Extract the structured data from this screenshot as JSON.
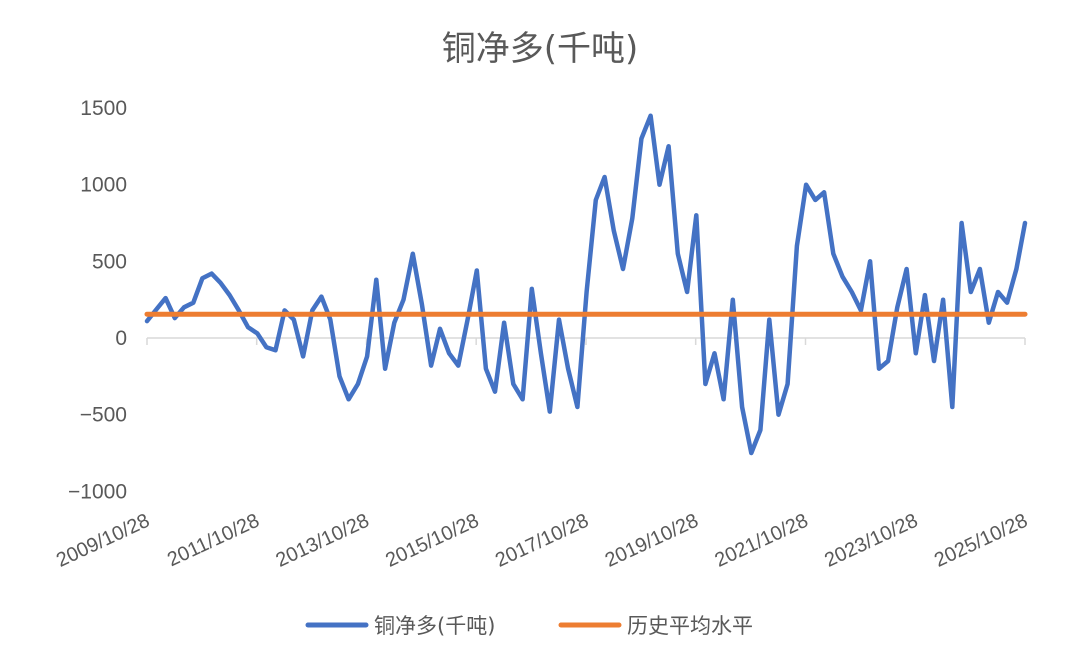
{
  "chart_data": {
    "type": "line",
    "title": "铜净多(千吨)",
    "xlabel": "",
    "ylabel": "",
    "ylim": [
      -1000,
      1500
    ],
    "y_ticks": [
      "1500",
      "1000",
      "500",
      "0",
      "−500",
      "−1000"
    ],
    "y_tick_values": [
      1500,
      1000,
      500,
      0,
      -500,
      -1000
    ],
    "x_ticks": [
      "2009/10/28",
      "2011/10/28",
      "2013/10/28",
      "2015/10/28",
      "2017/10/28",
      "2019/10/28",
      "2021/10/28",
      "2023/10/28",
      "2025/10/28"
    ],
    "grid": false,
    "legend_position": "bottom",
    "series": [
      {
        "name": "铜净多(千吨)",
        "color": "#4472C4",
        "points": [
          [
            "2009/10/28",
            110
          ],
          [
            "2010/01/01",
            190
          ],
          [
            "2010/03/01",
            260
          ],
          [
            "2010/05/01",
            130
          ],
          [
            "2010/07/01",
            200
          ],
          [
            "2010/09/01",
            230
          ],
          [
            "2010/11/01",
            390
          ],
          [
            "2011/01/01",
            420
          ],
          [
            "2011/03/01",
            360
          ],
          [
            "2011/05/01",
            280
          ],
          [
            "2011/07/01",
            180
          ],
          [
            "2011/09/01",
            70
          ],
          [
            "2011/11/01",
            30
          ],
          [
            "2012/01/01",
            -60
          ],
          [
            "2012/03/01",
            -80
          ],
          [
            "2012/05/01",
            180
          ],
          [
            "2012/07/01",
            120
          ],
          [
            "2012/09/01",
            -120
          ],
          [
            "2012/11/01",
            180
          ],
          [
            "2013/01/01",
            270
          ],
          [
            "2013/03/01",
            120
          ],
          [
            "2013/05/01",
            -250
          ],
          [
            "2013/07/01",
            -400
          ],
          [
            "2013/09/01",
            -300
          ],
          [
            "2013/11/01",
            -120
          ],
          [
            "2014/01/01",
            380
          ],
          [
            "2014/03/01",
            -200
          ],
          [
            "2014/05/01",
            100
          ],
          [
            "2014/07/01",
            250
          ],
          [
            "2014/09/01",
            550
          ],
          [
            "2014/11/01",
            220
          ],
          [
            "2015/01/01",
            -180
          ],
          [
            "2015/03/01",
            60
          ],
          [
            "2015/05/01",
            -100
          ],
          [
            "2015/07/01",
            -180
          ],
          [
            "2015/09/01",
            120
          ],
          [
            "2015/11/01",
            440
          ],
          [
            "2016/01/01",
            -200
          ],
          [
            "2016/03/01",
            -350
          ],
          [
            "2016/05/01",
            100
          ],
          [
            "2016/07/01",
            -300
          ],
          [
            "2016/09/01",
            -400
          ],
          [
            "2016/11/01",
            320
          ],
          [
            "2017/01/01",
            -100
          ],
          [
            "2017/03/01",
            -480
          ],
          [
            "2017/05/01",
            120
          ],
          [
            "2017/07/01",
            -200
          ],
          [
            "2017/09/01",
            -450
          ],
          [
            "2017/11/01",
            300
          ],
          [
            "2018/01/01",
            900
          ],
          [
            "2018/03/01",
            1050
          ],
          [
            "2018/05/01",
            700
          ],
          [
            "2018/07/01",
            450
          ],
          [
            "2018/09/01",
            780
          ],
          [
            "2018/11/01",
            1300
          ],
          [
            "2019/01/01",
            1450
          ],
          [
            "2019/03/01",
            1000
          ],
          [
            "2019/05/01",
            1250
          ],
          [
            "2019/07/01",
            550
          ],
          [
            "2019/09/01",
            300
          ],
          [
            "2019/11/01",
            800
          ],
          [
            "2020/01/01",
            -300
          ],
          [
            "2020/03/01",
            -100
          ],
          [
            "2020/05/01",
            -400
          ],
          [
            "2020/07/01",
            250
          ],
          [
            "2020/09/01",
            -450
          ],
          [
            "2020/11/01",
            -750
          ],
          [
            "2021/01/01",
            -600
          ],
          [
            "2021/03/01",
            120
          ],
          [
            "2021/05/01",
            -500
          ],
          [
            "2021/07/01",
            -300
          ],
          [
            "2021/09/01",
            600
          ],
          [
            "2021/11/01",
            1000
          ],
          [
            "2022/01/01",
            900
          ],
          [
            "2022/03/01",
            950
          ],
          [
            "2022/05/01",
            550
          ],
          [
            "2022/07/01",
            400
          ],
          [
            "2022/09/01",
            300
          ],
          [
            "2022/11/01",
            180
          ],
          [
            "2023/01/01",
            500
          ],
          [
            "2023/03/01",
            -200
          ],
          [
            "2023/05/01",
            -150
          ],
          [
            "2023/07/01",
            200
          ],
          [
            "2023/09/01",
            450
          ],
          [
            "2023/11/01",
            -100
          ],
          [
            "2024/01/01",
            280
          ],
          [
            "2024/03/01",
            -150
          ],
          [
            "2024/05/01",
            250
          ],
          [
            "2024/07/01",
            -450
          ],
          [
            "2024/09/01",
            750
          ],
          [
            "2024/11/01",
            300
          ],
          [
            "2025/01/01",
            450
          ],
          [
            "2025/03/01",
            100
          ],
          [
            "2025/05/01",
            300
          ],
          [
            "2025/07/01",
            230
          ],
          [
            "2025/09/01",
            450
          ],
          [
            "2025/10/28",
            750
          ]
        ]
      },
      {
        "name": "历史平均水平",
        "color": "#ED7D31",
        "points": [
          [
            "2009/10/28",
            155
          ],
          [
            "2025/10/28",
            155
          ]
        ]
      }
    ]
  }
}
